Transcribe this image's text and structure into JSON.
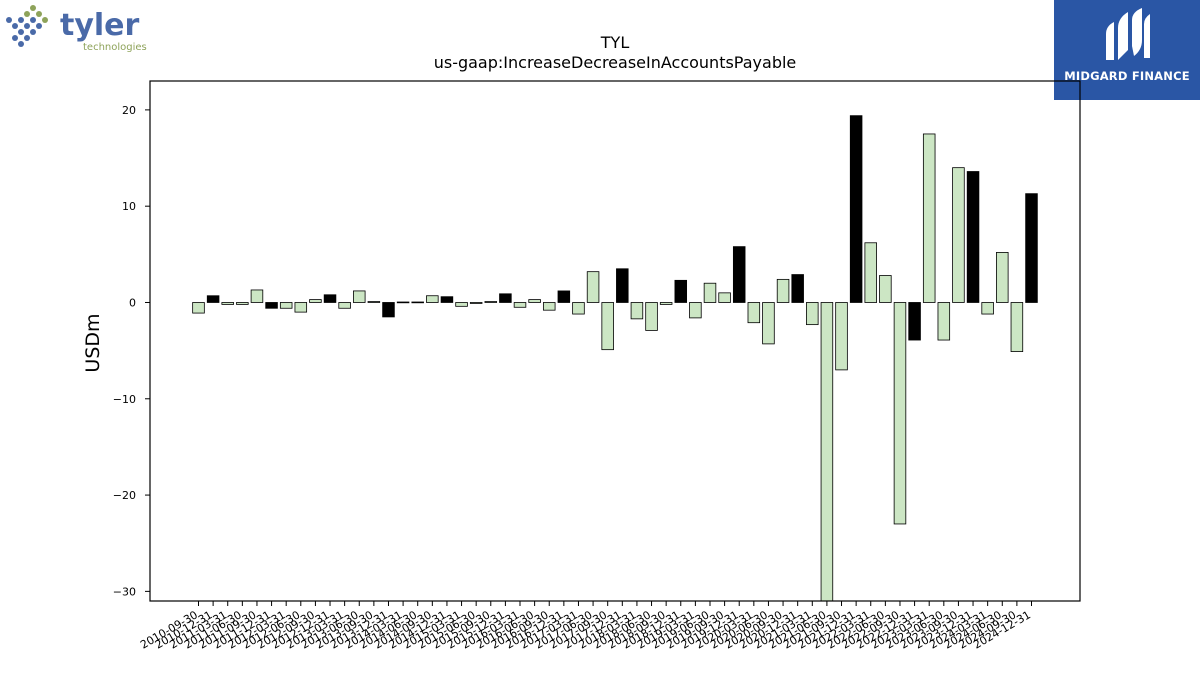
{
  "logos": {
    "left": {
      "name": "tyler",
      "sub": "technologies",
      "color_text": "#4a6aa8",
      "color_sub": "#8ea35a"
    },
    "right": {
      "name": "MIDGARD FINANCE",
      "background": "#2a56a5"
    }
  },
  "colors": {
    "positive_bar": "#000000",
    "negative_bar": "#cce6c4",
    "bar_edge": "#000000"
  },
  "chart_data": {
    "type": "bar",
    "title": "TYL",
    "subtitle": "us-gaap:IncreaseDecreaseInAccountsPayable",
    "xlabel": "",
    "ylabel": "USDm",
    "ylim": [
      -31,
      23
    ],
    "yticks": [
      -30,
      -20,
      -10,
      0,
      10,
      20
    ],
    "ytick_labels": [
      "−30",
      "−20",
      "−10",
      "0",
      "10",
      "20"
    ],
    "grid": false,
    "categories": [
      "2010-09-30",
      "2010-12-31",
      "2011-03-31",
      "2011-06-30",
      "2011-09-30",
      "2011-12-31",
      "2012-03-31",
      "2012-06-30",
      "2012-09-30",
      "2012-12-31",
      "2013-03-31",
      "2013-06-30",
      "2013-09-30",
      "2013-12-31",
      "2014-03-31",
      "2014-06-30",
      "2014-09-30",
      "2014-12-31",
      "2015-03-31",
      "2015-06-30",
      "2015-09-30",
      "2015-12-31",
      "2016-03-31",
      "2016-06-30",
      "2016-09-30",
      "2016-12-31",
      "2017-03-31",
      "2017-06-30",
      "2017-09-30",
      "2017-12-31",
      "2018-03-31",
      "2018-06-30",
      "2018-09-30",
      "2018-12-31",
      "2019-03-31",
      "2019-06-30",
      "2019-09-30",
      "2019-12-31",
      "2020-03-31",
      "2020-06-30",
      "2020-09-30",
      "2020-12-31",
      "2021-03-31",
      "2021-06-30",
      "2021-09-30",
      "2021-12-31",
      "2022-03-31",
      "2022-06-30",
      "2022-09-30",
      "2022-12-31",
      "2023-03-31",
      "2023-06-30",
      "2023-09-30",
      "2023-12-31",
      "2024-03-31",
      "2024-06-30",
      "2024-09-30",
      "2024-12-31"
    ],
    "values": [
      -1.1,
      0.7,
      -0.2,
      -0.2,
      1.3,
      -0.6,
      -0.6,
      -1.0,
      0.3,
      0.8,
      -0.6,
      1.2,
      0.1,
      -1.5,
      0.05,
      0.05,
      0.7,
      0.6,
      -0.4,
      -0.1,
      0.1,
      0.9,
      -0.5,
      0.3,
      -0.8,
      1.2,
      -1.2,
      3.2,
      -4.9,
      3.5,
      -1.7,
      -2.9,
      -0.2,
      2.3,
      -1.6,
      2.0,
      1.0,
      5.8,
      -2.1,
      -4.3,
      2.4,
      2.9,
      -2.3,
      -31.0,
      -7.0,
      19.4,
      6.2,
      2.8,
      -23.0,
      -3.9,
      17.5,
      -3.9,
      14.0,
      13.6,
      -1.2,
      5.2,
      -5.1,
      11.3
    ],
    "series_style": "Black = quarter ending Dec 31 / Sep 30 pattern as drawn; green = others",
    "black_indices": [
      1,
      5,
      9,
      13,
      17,
      21,
      25,
      29,
      33,
      37,
      41,
      45,
      49,
      53,
      57
    ]
  }
}
